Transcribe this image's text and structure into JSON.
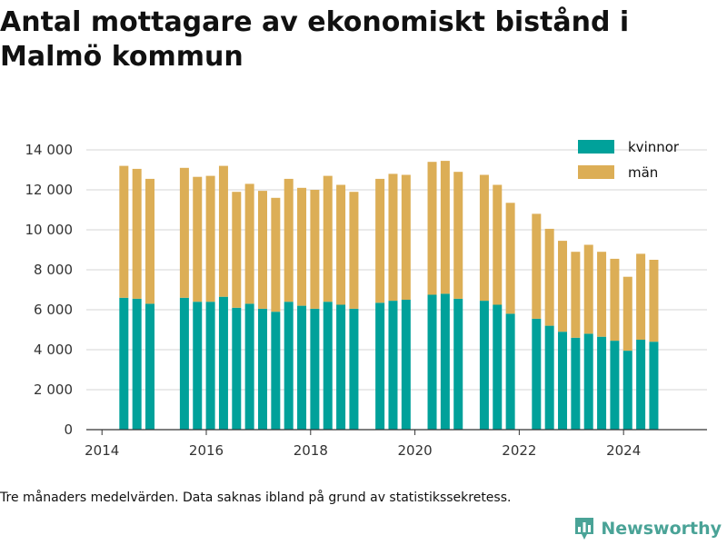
{
  "title": "Antal mottagare av ekonomiskt bistånd i Malmö kommun",
  "footnote": "Tre månaders medelvärden. Data saknas ibland på grund av statistikssekretess.",
  "brand": {
    "name": "Newsworthy",
    "color": "#4aa397",
    "icon": "bar-chart-logo-icon"
  },
  "colors": {
    "kvinnor": "#00a19a",
    "man": "#dcae56",
    "grid": "#dddddd",
    "axis": "#333333"
  },
  "chart_data": {
    "type": "bar",
    "stacked": true,
    "xlabel": "",
    "ylabel": "",
    "ylim": [
      0,
      14000
    ],
    "xlim": [
      2013.7,
      2025.6
    ],
    "grid": true,
    "legend": "top-right",
    "x_ticks": [
      2014,
      2016,
      2018,
      2020,
      2022,
      2024
    ],
    "y_ticks": [
      0,
      2000,
      4000,
      6000,
      8000,
      10000,
      12000,
      14000
    ],
    "y_tick_labels": [
      "0",
      "2 000",
      "4 000",
      "6 000",
      "8 000",
      "10 000",
      "12 000",
      "14 000"
    ],
    "x": [
      2014.42,
      2014.67,
      2014.92,
      2015.58,
      2015.83,
      2016.08,
      2016.33,
      2016.58,
      2016.83,
      2017.08,
      2017.33,
      2017.58,
      2017.83,
      2018.08,
      2018.33,
      2018.58,
      2018.83,
      2019.33,
      2019.58,
      2019.83,
      2020.33,
      2020.58,
      2020.83,
      2021.33,
      2021.58,
      2021.83,
      2022.33,
      2022.58,
      2022.83,
      2023.08,
      2023.33,
      2023.58,
      2023.83,
      2024.08,
      2024.33,
      2024.58
    ],
    "series": [
      {
        "name": "kvinnor",
        "values": [
          6600,
          6550,
          6300,
          6600,
          6400,
          6400,
          6650,
          6100,
          6300,
          6050,
          5900,
          6400,
          6200,
          6050,
          6400,
          6250,
          6050,
          6350,
          6450,
          6500,
          6750,
          6800,
          6550,
          6450,
          6250,
          5800,
          5550,
          5200,
          4900,
          4600,
          4800,
          4650,
          4450,
          3950,
          4500,
          4400
        ]
      },
      {
        "name": "män",
        "values": [
          6600,
          6500,
          6250,
          6500,
          6250,
          6300,
          6550,
          5800,
          6000,
          5900,
          5700,
          6150,
          5900,
          5950,
          6300,
          6000,
          5850,
          6200,
          6350,
          6250,
          6650,
          6650,
          6350,
          6300,
          6000,
          5550,
          5250,
          4850,
          4550,
          4300,
          4450,
          4250,
          4100,
          3700,
          4300,
          4100
        ]
      }
    ]
  }
}
